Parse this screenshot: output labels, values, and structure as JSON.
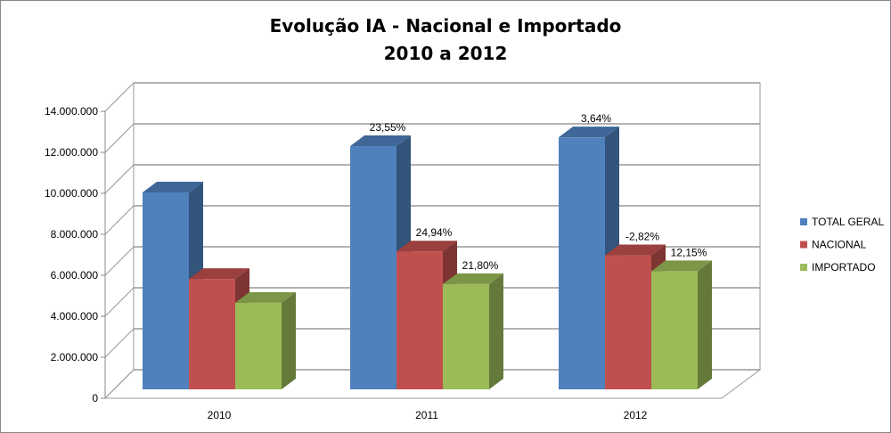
{
  "chart_data": {
    "type": "bar",
    "title": [
      "Evolução IA - Nacional e Importado",
      "2010 a 2012"
    ],
    "categories": [
      "2010",
      "2011",
      "2012"
    ],
    "series": [
      {
        "name": "TOTAL GERAL",
        "color": "#4F81BD",
        "values": [
          9650000,
          11920000,
          12350000
        ],
        "labels": [
          "",
          "23,55%",
          "3,64%"
        ]
      },
      {
        "name": "NACIONAL",
        "color": "#C0504D",
        "values": [
          5410000,
          6760000,
          6570000
        ],
        "labels": [
          "",
          "24,94%",
          "-2,82%"
        ]
      },
      {
        "name": "IMPORTADO",
        "color": "#9BBB59",
        "values": [
          4240000,
          5160000,
          5790000
        ],
        "labels": [
          "",
          "21,80%",
          "12,15%"
        ]
      }
    ],
    "yticks": [
      "0",
      "2.000.000",
      "4.000.000",
      "6.000.000",
      "8.000.000",
      "10.000.000",
      "12.000.000",
      "14.000.000"
    ],
    "ylim": [
      0,
      14000000
    ],
    "xlabel": "",
    "ylabel": "",
    "grid": true,
    "legend": "right"
  }
}
